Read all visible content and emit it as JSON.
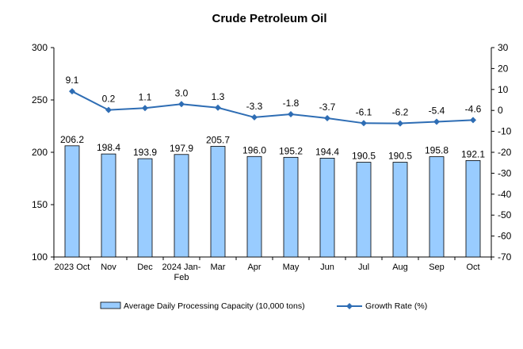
{
  "chart_data": {
    "type": "bar",
    "title": "Crude Petroleum Oil",
    "categories": [
      [
        "2023 Oct"
      ],
      [
        "Nov"
      ],
      [
        "Dec"
      ],
      [
        "2024 Jan-",
        "Feb"
      ],
      [
        "Mar"
      ],
      [
        "Apr"
      ],
      [
        "May"
      ],
      [
        "Jun"
      ],
      [
        "Jul"
      ],
      [
        "Aug"
      ],
      [
        "Sep"
      ],
      [
        "Oct"
      ]
    ],
    "series": [
      {
        "name": "Average Daily Processing Capacity (10,000 tons)",
        "type": "bar",
        "axis": "left",
        "color": "#99ccff",
        "values": [
          206.2,
          198.4,
          193.9,
          197.9,
          205.7,
          196.0,
          195.2,
          194.4,
          190.5,
          190.5,
          195.8,
          192.1
        ],
        "labels": [
          "206.2",
          "198.4",
          "193.9",
          "197.9",
          "205.7",
          "196.0",
          "195.2",
          "194.4",
          "190.5",
          "190.5",
          "195.8",
          "192.1"
        ]
      },
      {
        "name": "Growth Rate (%)",
        "type": "line",
        "axis": "right",
        "color": "#2e6db4",
        "values": [
          9.1,
          0.2,
          1.1,
          3.0,
          1.3,
          -3.3,
          -1.8,
          -3.7,
          -6.1,
          -6.2,
          -5.4,
          -4.6
        ],
        "labels": [
          "9.1",
          "0.2",
          "1.1",
          "3.0",
          "1.3",
          "-3.3",
          "-1.8",
          "-3.7",
          "-6.1",
          "-6.2",
          "-5.4",
          "-4.6"
        ]
      }
    ],
    "y_left": {
      "min": 100,
      "max": 300,
      "ticks": [
        100,
        150,
        200,
        250,
        300
      ]
    },
    "y_right": {
      "min": -70,
      "max": 30,
      "ticks": [
        30,
        20,
        10,
        0,
        -10,
        -20,
        -30,
        -40,
        -50,
        -60,
        -70
      ]
    },
    "grid": false,
    "legend": "bottom"
  }
}
